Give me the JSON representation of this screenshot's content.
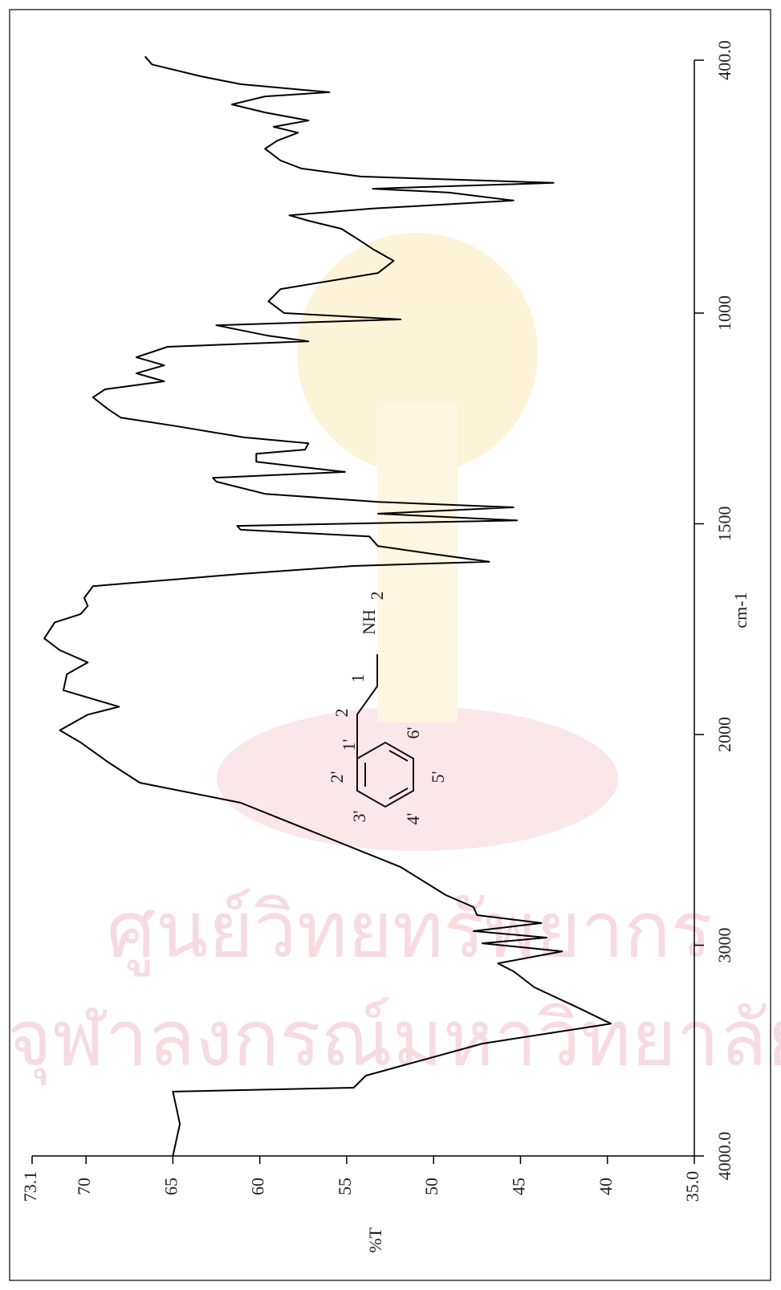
{
  "chart_data": {
    "type": "line",
    "x_label": "cm-1",
    "y_label": "%T",
    "x": [
      4000,
      3848,
      3695,
      3676,
      3619,
      3467,
      3372,
      3296,
      3200,
      3124,
      3086,
      3029,
      2991,
      2964,
      2933,
      2895,
      2857,
      2819,
      2762,
      2629,
      2476,
      2324,
      2229,
      2133,
      2038,
      1990,
      1953,
      1934,
      1895,
      1857,
      1829,
      1800,
      1772,
      1734,
      1714,
      1695,
      1676,
      1648,
      1619,
      1600,
      1590,
      1572,
      1553,
      1530,
      1514,
      1505,
      1492,
      1476,
      1461,
      1448,
      1429,
      1400,
      1391,
      1377,
      1353,
      1334,
      1324,
      1309,
      1295,
      1267,
      1248,
      1229,
      1200,
      1181,
      1162,
      1143,
      1124,
      1105,
      1080,
      1067,
      1054,
      1029,
      1015,
      1000,
      972,
      943,
      905,
      876,
      848,
      829,
      800,
      781,
      768,
      752,
      733,
      714,
      705,
      691,
      676,
      657,
      638,
      610,
      591,
      572,
      558,
      543,
      524,
      505,
      486,
      476,
      457,
      438,
      410,
      391
    ],
    "values": [
      65.0,
      64.6,
      65.0,
      54.6,
      53.9,
      47.2,
      39.8,
      41.7,
      44.2,
      45.4,
      46.3,
      42.6,
      47.2,
      43.5,
      47.7,
      43.8,
      47.5,
      47.7,
      49.3,
      51.9,
      56.5,
      61.1,
      66.9,
      68.7,
      70.3,
      71.5,
      69.9,
      68.1,
      71.3,
      71.1,
      69.9,
      71.5,
      72.4,
      71.8,
      70.3,
      69.9,
      70.1,
      69.6,
      61.1,
      54.6,
      46.8,
      50.0,
      53.2,
      53.7,
      61.1,
      61.3,
      45.2,
      53.2,
      45.4,
      53.2,
      59.7,
      62.5,
      62.7,
      55.1,
      60.2,
      60.2,
      57.4,
      57.2,
      60.9,
      65.0,
      68.0,
      68.7,
      69.6,
      68.9,
      65.5,
      67.1,
      65.5,
      67.1,
      65.3,
      57.2,
      59.5,
      62.5,
      51.9,
      58.6,
      59.5,
      58.8,
      53.2,
      52.3,
      53.5,
      54.2,
      55.3,
      57.2,
      58.3,
      53.5,
      45.4,
      49.1,
      53.5,
      43.1,
      54.2,
      57.6,
      58.8,
      59.7,
      59.0,
      57.8,
      59.2,
      57.2,
      59.7,
      61.6,
      59.7,
      56.0,
      61.1,
      63.4,
      66.2,
      66.6
    ],
    "color": "#000000",
    "xlim": [
      4000,
      400
    ],
    "x_scale_change_at": 2000,
    "xticks": [
      {
        "value": 4000,
        "label": "4000.0"
      },
      3000,
      2000,
      1500,
      1000,
      {
        "value": 400,
        "label": "400.0"
      }
    ],
    "ylim": [
      35,
      73.1
    ],
    "yticks": [
      73.1,
      70,
      65,
      60,
      55,
      50,
      45,
      40,
      {
        "value": 35,
        "label": "35.0"
      }
    ],
    "structure_labels": [
      "NH",
      "2",
      "1",
      "2",
      "1'",
      "2'",
      "3'",
      "4'",
      "5'",
      "6'"
    ],
    "watermark": [
      "ศูนย์วิทยทรัพยากร",
      "จุฬาลงกรณ์มหาวิทยาลัย"
    ]
  }
}
